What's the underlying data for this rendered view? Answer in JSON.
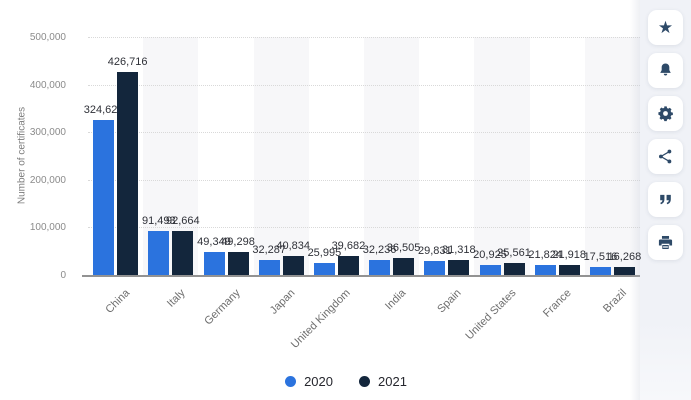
{
  "chart_data": {
    "type": "bar",
    "title": "",
    "ylabel": "Number of certificates",
    "categories": [
      "China",
      "Italy",
      "Germany",
      "Japan",
      "United Kingdom",
      "India",
      "Spain",
      "United States",
      "France",
      "Brazil"
    ],
    "series": [
      {
        "name": "2020",
        "color": "#2b73de",
        "values": [
          324621,
          91493,
          49349,
          32287,
          25995,
          32236,
          29831,
          20925,
          21824,
          17516
        ]
      },
      {
        "name": "2021",
        "color": "#13263c",
        "values": [
          426716,
          92664,
          49298,
          40834,
          39682,
          36505,
          31318,
          25561,
          21918,
          16268
        ]
      }
    ],
    "ylim": [
      0,
      500000
    ],
    "yticks": [
      "0",
      "100,000",
      "200,000",
      "300,000",
      "400,000",
      "500,000"
    ],
    "grid": "horizontal-dotted",
    "value_labels": "comma-formatted totals above each bar",
    "legend_position": "bottom"
  },
  "legend": {
    "items": [
      {
        "label": "2020",
        "color": "#2b73de"
      },
      {
        "label": "2021",
        "color": "#13263c"
      }
    ]
  },
  "sidebar": {
    "buttons": [
      {
        "name": "favorite",
        "icon": "star-icon"
      },
      {
        "name": "notification",
        "icon": "bell-icon"
      },
      {
        "name": "settings",
        "icon": "gear-icon"
      },
      {
        "name": "share",
        "icon": "share-icon"
      },
      {
        "name": "cite",
        "icon": "quote-icon"
      },
      {
        "name": "print",
        "icon": "printer-icon"
      }
    ]
  },
  "colors": {
    "band": "#f7f7f9",
    "gridline": "#d9d9d9",
    "axis_line": "#929292",
    "tick_text": "#8b8b8b",
    "category_text": "#6e6e6e",
    "value_text": "#2f3138",
    "sidebar_bg": "#f0f2f7",
    "icon": "#2e4a68"
  }
}
